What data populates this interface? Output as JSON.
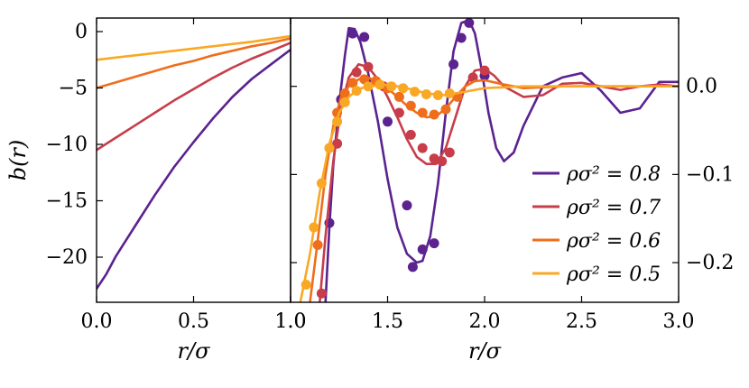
{
  "chart_data": [
    {
      "type": "line",
      "name": "left-panel",
      "xlabel": "r/σ",
      "ylabel": "b(r)",
      "xlim": [
        0.0,
        1.0
      ],
      "ylim": [
        -24,
        1.2
      ],
      "xticks": [
        0.0,
        0.5,
        1.0
      ],
      "xtick_labels": [
        "0.0",
        "0.5",
        "1.0"
      ],
      "yticks": [
        0,
        -5,
        -10,
        -15,
        -20
      ],
      "ytick_labels": [
        "0",
        "−5",
        "−10",
        "−15",
        "−20"
      ],
      "series": [
        {
          "name": "ρσ² = 0.8",
          "color": "#5b2290",
          "x": [
            0.0,
            0.05,
            0.1,
            0.2,
            0.3,
            0.4,
            0.5,
            0.6,
            0.7,
            0.8,
            0.9,
            1.0
          ],
          "y": [
            -22.8,
            -21.5,
            -19.9,
            -17.2,
            -14.5,
            -12.0,
            -9.8,
            -7.7,
            -5.8,
            -4.2,
            -2.9,
            -1.6
          ]
        },
        {
          "name": "ρσ² = 0.7",
          "color": "#c73d4a",
          "x": [
            0.0,
            0.1,
            0.2,
            0.3,
            0.4,
            0.5,
            0.6,
            0.7,
            0.8,
            0.9,
            1.0
          ],
          "y": [
            -10.5,
            -9.4,
            -8.3,
            -7.2,
            -6.1,
            -5.1,
            -4.1,
            -3.2,
            -2.4,
            -1.7,
            -1.0
          ]
        },
        {
          "name": "ρσ² = 0.6",
          "color": "#ee6e1c",
          "x": [
            0.0,
            0.1,
            0.2,
            0.3,
            0.4,
            0.5,
            0.6,
            0.7,
            0.8,
            0.9,
            1.0
          ],
          "y": [
            -5.0,
            -4.5,
            -4.0,
            -3.5,
            -3.0,
            -2.6,
            -2.1,
            -1.7,
            -1.3,
            -1.0,
            -0.6
          ]
        },
        {
          "name": "ρσ² = 0.5",
          "color": "#f9a825",
          "x": [
            0.0,
            0.2,
            0.4,
            0.6,
            0.8,
            1.0
          ],
          "y": [
            -2.5,
            -2.1,
            -1.7,
            -1.3,
            -0.9,
            -0.4
          ]
        }
      ]
    },
    {
      "type": "line",
      "name": "right-panel",
      "xlabel": "r/σ",
      "xlim": [
        1.0,
        3.0
      ],
      "ylim": [
        -0.245,
        0.0775
      ],
      "xticks": [
        1.0,
        1.5,
        2.0,
        2.5,
        3.0
      ],
      "xtick_labels": [
        "1.0",
        "1.5",
        "2.0",
        "2.5",
        "3.0"
      ],
      "yticks": [
        0.0,
        -0.1,
        -0.2
      ],
      "ytick_labels": [
        "0.0",
        "−0.1",
        "−0.2"
      ],
      "legend": "right",
      "series": [
        {
          "name": "ρσ² = 0.8",
          "label": "ρσ² = 0.8",
          "color": "#5b2290",
          "x": [
            1.18,
            1.2,
            1.22,
            1.25,
            1.28,
            1.3,
            1.33,
            1.36,
            1.4,
            1.45,
            1.5,
            1.55,
            1.6,
            1.65,
            1.68,
            1.72,
            1.76,
            1.8,
            1.84,
            1.88,
            1.92,
            1.95,
            1.98,
            2.02,
            2.06,
            2.1,
            2.15,
            2.2,
            2.3,
            2.4,
            2.5,
            2.6,
            2.7,
            2.8,
            2.9,
            3.0
          ],
          "y": [
            -0.245,
            -0.16,
            -0.09,
            -0.02,
            0.035,
            0.066,
            0.065,
            0.05,
            0.015,
            -0.04,
            -0.105,
            -0.16,
            -0.19,
            -0.2,
            -0.198,
            -0.17,
            -0.11,
            -0.03,
            0.04,
            0.072,
            0.075,
            0.06,
            0.025,
            -0.03,
            -0.07,
            -0.085,
            -0.075,
            -0.045,
            0.0,
            0.01,
            0.015,
            -0.005,
            -0.03,
            -0.025,
            0.005,
            0.005
          ],
          "points_x": [
            1.2,
            1.26,
            1.32,
            1.38,
            1.5,
            1.6,
            1.63,
            1.68,
            1.74,
            1.84,
            1.88,
            1.92,
            2.0
          ],
          "points_y": [
            -0.155,
            -0.015,
            0.06,
            0.056,
            -0.04,
            -0.135,
            -0.205,
            -0.185,
            -0.178,
            0.025,
            0.055,
            0.072,
            0.012
          ]
        },
        {
          "name": "ρσ² = 0.7",
          "label": "ρσ² = 0.7",
          "color": "#c73d4a",
          "x": [
            1.15,
            1.18,
            1.22,
            1.26,
            1.3,
            1.35,
            1.4,
            1.45,
            1.5,
            1.55,
            1.6,
            1.65,
            1.7,
            1.75,
            1.8,
            1.85,
            1.9,
            1.95,
            2.0,
            2.05,
            2.1,
            2.2,
            2.3,
            2.4,
            2.5,
            2.6,
            2.7,
            2.8,
            2.9,
            3.0
          ],
          "y": [
            -0.245,
            -0.17,
            -0.085,
            -0.025,
            0.01,
            0.025,
            0.022,
            0.008,
            -0.012,
            -0.035,
            -0.06,
            -0.08,
            -0.088,
            -0.088,
            -0.07,
            -0.035,
            0.0,
            0.018,
            0.02,
            0.012,
            0.0,
            -0.012,
            -0.01,
            0.003,
            0.004,
            0.0,
            -0.004,
            0.0,
            0.002,
            0.0
          ],
          "points_x": [
            1.16,
            1.24,
            1.34,
            1.4,
            1.48,
            1.56,
            1.62,
            1.68,
            1.74,
            1.78,
            1.82,
            1.94,
            2.0
          ],
          "points_y": [
            -0.235,
            -0.065,
            0.016,
            0.022,
            0.0,
            -0.03,
            -0.055,
            -0.07,
            -0.082,
            -0.085,
            -0.075,
            0.01,
            0.018
          ]
        },
        {
          "name": "ρσ² = 0.6",
          "label": "ρσ² = 0.6",
          "color": "#ee6e1c",
          "x": [
            1.1,
            1.14,
            1.18,
            1.22,
            1.26,
            1.3,
            1.35,
            1.4,
            1.45,
            1.5,
            1.55,
            1.6,
            1.65,
            1.7,
            1.75,
            1.8,
            1.85,
            1.9,
            1.95,
            2.0,
            2.1,
            2.2,
            2.4,
            2.6,
            2.8,
            3.0
          ],
          "y": [
            -0.245,
            -0.175,
            -0.1,
            -0.045,
            -0.012,
            0.0,
            0.008,
            0.01,
            0.005,
            -0.002,
            -0.012,
            -0.022,
            -0.03,
            -0.035,
            -0.034,
            -0.025,
            -0.012,
            0.0,
            0.006,
            0.007,
            0.002,
            -0.002,
            0.0,
            0.0,
            0.0,
            0.0
          ],
          "points_x": [
            1.14,
            1.2,
            1.24,
            1.28,
            1.32,
            1.38,
            1.44,
            1.5,
            1.56,
            1.62,
            1.68,
            1.74,
            1.8,
            1.86
          ],
          "points_y": [
            -0.18,
            -0.07,
            -0.03,
            -0.008,
            0.004,
            0.008,
            0.006,
            -0.002,
            -0.012,
            -0.022,
            -0.03,
            -0.032,
            -0.026,
            -0.012
          ]
        },
        {
          "name": "ρσ² = 0.5",
          "label": "ρσ² = 0.5",
          "color": "#f9a825",
          "x": [
            1.05,
            1.1,
            1.15,
            1.2,
            1.25,
            1.3,
            1.35,
            1.4,
            1.5,
            1.6,
            1.7,
            1.8,
            1.9,
            2.0,
            2.2,
            2.4,
            2.6,
            2.8,
            3.0
          ],
          "y": [
            -0.245,
            -0.19,
            -0.12,
            -0.065,
            -0.03,
            -0.012,
            -0.003,
            0.0,
            0.002,
            -0.002,
            -0.008,
            -0.01,
            -0.006,
            -0.002,
            0.0,
            0.0,
            0.0,
            0.0,
            0.0
          ],
          "points_x": [
            1.08,
            1.12,
            1.16,
            1.2,
            1.24,
            1.28,
            1.34,
            1.4,
            1.46,
            1.52,
            1.58,
            1.64,
            1.7,
            1.76,
            1.82
          ],
          "points_y": [
            -0.225,
            -0.16,
            -0.11,
            -0.07,
            -0.04,
            -0.018,
            -0.005,
            0.0,
            0.002,
            0.0,
            -0.002,
            -0.006,
            -0.009,
            -0.01,
            -0.008
          ]
        }
      ]
    }
  ]
}
